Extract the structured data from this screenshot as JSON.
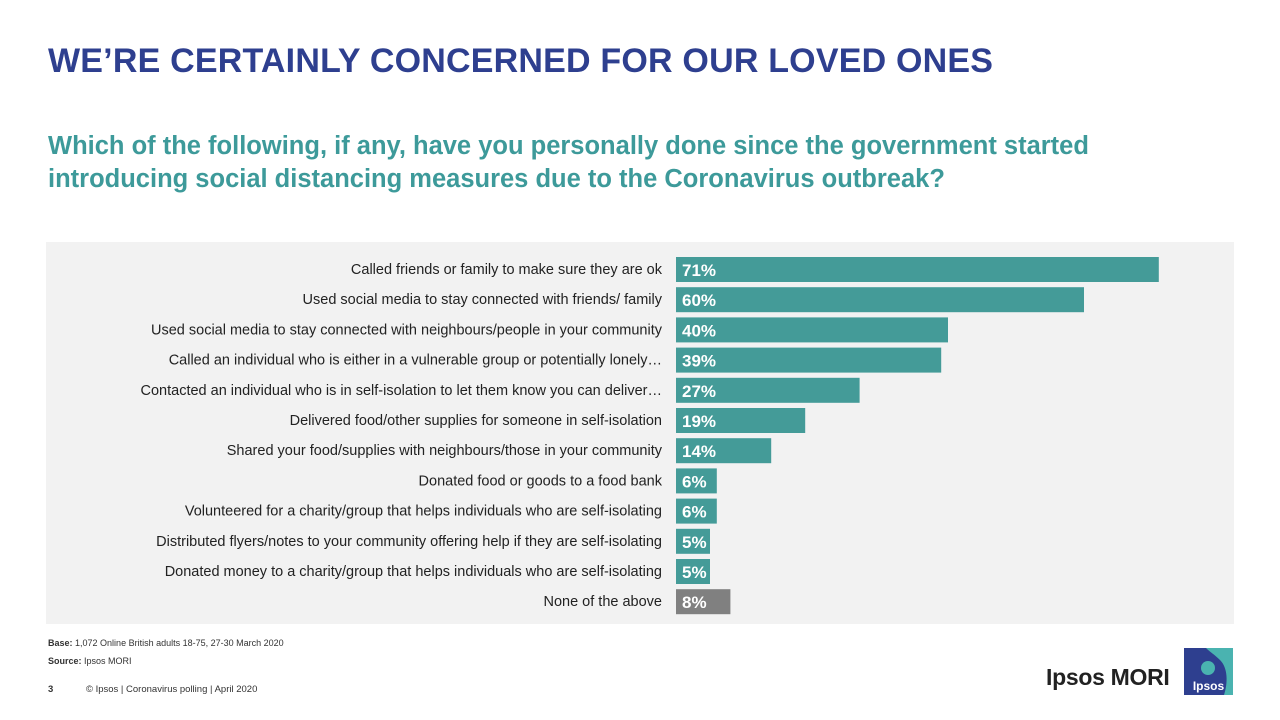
{
  "title": "WE’RE CERTAINLY CONCERNED FOR OUR LOVED ONES",
  "subtitle": "Which of the following, if any, have you personally done since the government started introducing social distancing measures due to the Coronavirus outbreak?",
  "footnotes": {
    "base_label": "Base:",
    "base_text": "1,072 Online British adults 18-75,  27-30 March 2020",
    "source_label": "Source:",
    "source_text": "Ipsos MORI"
  },
  "footer": {
    "page_number": "3",
    "text": "© Ipsos | Coronavirus polling | April 2020"
  },
  "brand": {
    "name": "Ipsos MORI",
    "logo_text": "Ipsos"
  },
  "colors": {
    "title": "#2e3f8f",
    "subtitle": "#3d9a9a",
    "bar": "#449b98",
    "bar_none": "#808080",
    "panel": "#f2f2f2",
    "logo_bg": "#2e3f8f",
    "logo_accent": "#4ab3b0"
  },
  "chart_data": {
    "type": "bar",
    "orientation": "horizontal",
    "categories": [
      "Called friends or family to make sure they are ok",
      "Used social media to stay connected with friends/ family",
      "Used social media to stay connected with neighbours/people in your community",
      "Called an individual who is either in a vulnerable group or potentially lonely…",
      "Contacted an individual who is in self-isolation to let them know you can deliver…",
      "Delivered food/other supplies for someone in self-isolation",
      "Shared your food/supplies with neighbours/those in your community",
      "Donated food or goods to a food bank",
      "Volunteered for a charity/group that helps individuals who are self-isolating",
      "Distributed flyers/notes to  your community offering help if they are self-isolating",
      "Donated money to a charity/group that helps individuals who are self-isolating",
      "None of the above"
    ],
    "values": [
      71,
      60,
      40,
      39,
      27,
      19,
      14,
      6,
      6,
      5,
      5,
      8
    ],
    "value_labels": [
      "71%",
      "60%",
      "40%",
      "39%",
      "27%",
      "19%",
      "14%",
      "6%",
      "6%",
      "5%",
      "5%",
      "8%"
    ],
    "highlight_last": true,
    "xlim": [
      0,
      75
    ],
    "grid": false,
    "legend": "none"
  }
}
